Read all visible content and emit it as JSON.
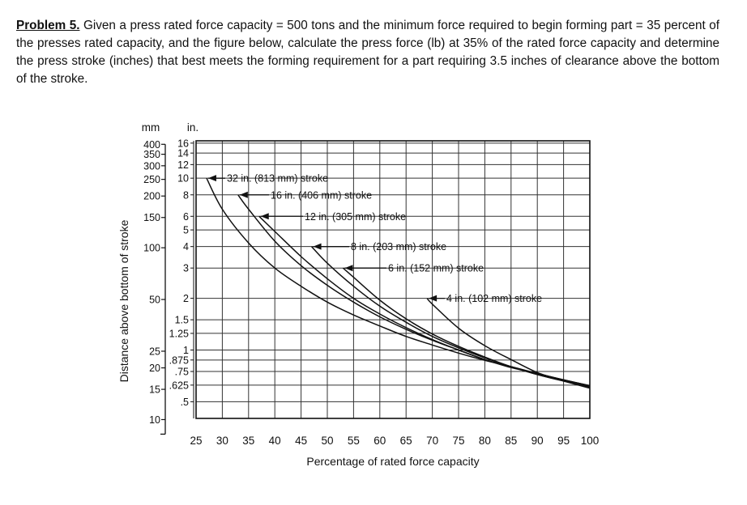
{
  "problem": {
    "label": "Problem 5.",
    "text": " Given a press rated force capacity = 500 tons and the minimum force required to begin forming part = 35 percent of the presses rated capacity, and the figure below, calculate the press force (lb) at 35% of the rated force capacity and determine the press stroke (inches) that best meets the forming requirement for a part requiring 3.5 inches of clearance above the bottom of the stroke."
  },
  "chart_data": {
    "type": "line",
    "xlabel": "Percentage of rated force capacity",
    "ylabel": "Distance above bottom of stroke",
    "x_ticks": [
      25,
      30,
      35,
      40,
      45,
      50,
      55,
      60,
      65,
      70,
      75,
      80,
      85,
      90,
      95,
      100
    ],
    "xlim": [
      25,
      100
    ],
    "y_scale": "log",
    "y_units": [
      "mm",
      "in."
    ],
    "y_ticks_mm": [
      "400",
      "350",
      "300",
      "250",
      "200",
      "150",
      "100",
      "50",
      "25",
      "20",
      "15",
      "10"
    ],
    "y_ticks_in": [
      "16",
      "14",
      "12",
      "10",
      "8",
      "6",
      "5",
      "4",
      "3",
      "2",
      "1.5",
      "1.25",
      "1",
      ".875",
      ".75",
      ".625",
      ".5"
    ],
    "grid": true,
    "series": [
      {
        "name": "32 in. (813 mm) stroke",
        "x": [
          27,
          30,
          35,
          40,
          45,
          50,
          55,
          60,
          65,
          70,
          75,
          80,
          85,
          90,
          95,
          100
        ],
        "y": [
          10,
          6.6,
          4.2,
          3.0,
          2.35,
          1.9,
          1.6,
          1.38,
          1.2,
          1.07,
          0.96,
          0.87,
          0.8,
          0.73,
          0.67,
          0.62
        ]
      },
      {
        "name": "16 in. (406 mm) stroke",
        "x": [
          33,
          35,
          40,
          45,
          50,
          55,
          60,
          65,
          70,
          75,
          80,
          85,
          90,
          95,
          100
        ],
        "y": [
          8,
          6.6,
          4.3,
          3.1,
          2.38,
          1.9,
          1.56,
          1.32,
          1.14,
          1.0,
          0.88,
          0.8,
          0.73,
          0.67,
          0.62
        ]
      },
      {
        "name": "12 in. (305 mm) stroke",
        "x": [
          37,
          40,
          45,
          50,
          55,
          60,
          65,
          70,
          75,
          80,
          85,
          90,
          95,
          100
        ],
        "y": [
          6,
          4.9,
          3.5,
          2.6,
          2.0,
          1.62,
          1.35,
          1.15,
          1.0,
          0.88,
          0.79,
          0.73,
          0.67,
          0.62
        ]
      },
      {
        "name": "8 in. (203 mm) stroke",
        "x": [
          47,
          50,
          55,
          60,
          65,
          70,
          75,
          80,
          85,
          90,
          95,
          100
        ],
        "y": [
          4,
          3.2,
          2.35,
          1.8,
          1.45,
          1.2,
          1.03,
          0.9,
          0.8,
          0.72,
          0.66,
          0.61
        ]
      },
      {
        "name": "6 in. (152 mm) stroke",
        "x": [
          53,
          55,
          60,
          65,
          70,
          75,
          80,
          85,
          90,
          95,
          100
        ],
        "y": [
          3,
          2.65,
          1.95,
          1.52,
          1.24,
          1.05,
          0.91,
          0.8,
          0.72,
          0.66,
          0.61
        ]
      },
      {
        "name": "4 in. (102 mm) stroke",
        "x": [
          69,
          70,
          75,
          80,
          85,
          90,
          95,
          100
        ],
        "y": [
          2,
          1.85,
          1.34,
          1.06,
          0.88,
          0.74,
          0.66,
          0.6
        ]
      }
    ]
  }
}
